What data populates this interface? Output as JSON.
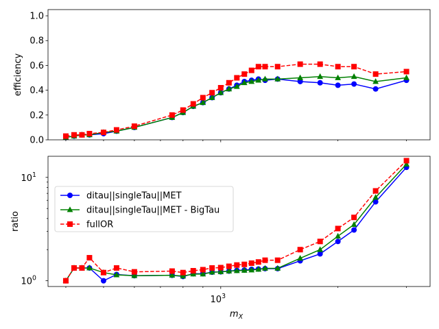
{
  "chart_data": [
    {
      "type": "line",
      "panel": "top",
      "xscale": "log",
      "xlim": [
        360,
        3450
      ],
      "ylim": [
        0,
        1.05
      ],
      "ylabel": "efficiency",
      "yticks": [
        0.0,
        0.2,
        0.4,
        0.6,
        0.8,
        1.0
      ],
      "ytick_labels": [
        "0.0",
        "0.2",
        "0.4",
        "0.6",
        "0.8",
        "1.0"
      ],
      "grid": false,
      "x": [
        400,
        420,
        440,
        460,
        500,
        540,
        600,
        750,
        800,
        850,
        900,
        950,
        1000,
        1050,
        1100,
        1150,
        1200,
        1250,
        1300,
        1400,
        1600,
        1800,
        2000,
        2200,
        2500,
        3000
      ],
      "series": [
        {
          "name": "ditau||singleTau||MET",
          "color": "#0000ff",
          "linestyle": "solid",
          "marker": "circle",
          "values": [
            0.02,
            0.03,
            0.04,
            0.04,
            0.05,
            0.07,
            0.1,
            0.18,
            0.22,
            0.27,
            0.3,
            0.34,
            0.38,
            0.41,
            0.44,
            0.47,
            0.48,
            0.49,
            0.48,
            0.49,
            0.47,
            0.46,
            0.44,
            0.45,
            0.41,
            0.48
          ]
        },
        {
          "name": "ditau||singleTau||MET - BigTau",
          "color": "#008000",
          "linestyle": "solid",
          "marker": "triangle",
          "values": [
            0.02,
            0.03,
            0.04,
            0.04,
            0.06,
            0.07,
            0.1,
            0.18,
            0.22,
            0.27,
            0.3,
            0.34,
            0.38,
            0.41,
            0.43,
            0.46,
            0.47,
            0.48,
            0.49,
            0.49,
            0.5,
            0.51,
            0.5,
            0.51,
            0.47,
            0.5
          ]
        },
        {
          "name": "fullOR",
          "color": "#ff0000",
          "linestyle": "dashed",
          "marker": "square",
          "values": [
            0.03,
            0.04,
            0.04,
            0.05,
            0.06,
            0.08,
            0.11,
            0.2,
            0.24,
            0.29,
            0.34,
            0.38,
            0.42,
            0.46,
            0.5,
            0.53,
            0.56,
            0.59,
            0.59,
            0.59,
            0.61,
            0.61,
            0.59,
            0.59,
            0.53,
            0.55
          ]
        }
      ]
    },
    {
      "type": "line",
      "panel": "bottom",
      "xscale": "log",
      "yscale": "log",
      "xlim": [
        360,
        3450
      ],
      "ylim": [
        0.88,
        16
      ],
      "xlabel": "m_X",
      "ylabel": "ratio",
      "xtick_label": "10^3",
      "ytick_labels": [
        "10^0",
        "10^1"
      ],
      "legend_position": "center-left",
      "grid": false,
      "x": [
        400,
        420,
        440,
        460,
        500,
        540,
        600,
        750,
        800,
        850,
        900,
        950,
        1000,
        1050,
        1100,
        1150,
        1200,
        1250,
        1300,
        1400,
        1600,
        1800,
        2000,
        2200,
        2500,
        3000
      ],
      "series": [
        {
          "name": "ditau||singleTau||MET",
          "color": "#0000ff",
          "linestyle": "solid",
          "marker": "circle",
          "values": [
            1.0,
            1.33,
            1.33,
            1.33,
            1.0,
            1.15,
            1.12,
            1.13,
            1.1,
            1.17,
            1.17,
            1.21,
            1.22,
            1.24,
            1.26,
            1.27,
            1.29,
            1.3,
            1.31,
            1.31,
            1.56,
            1.82,
            2.4,
            3.1,
            5.8,
            12.5
          ]
        },
        {
          "name": "ditau||singleTau||MET - BigTau",
          "color": "#008000",
          "linestyle": "solid",
          "marker": "triangle",
          "values": [
            1.0,
            1.33,
            1.33,
            1.33,
            1.2,
            1.14,
            1.12,
            1.13,
            1.11,
            1.16,
            1.16,
            1.21,
            1.22,
            1.24,
            1.25,
            1.26,
            1.27,
            1.29,
            1.32,
            1.32,
            1.65,
            2.0,
            2.7,
            3.5,
            6.4,
            13.4
          ]
        },
        {
          "name": "fullOR",
          "color": "#ff0000",
          "linestyle": "dashed",
          "marker": "square",
          "values": [
            1.0,
            1.33,
            1.33,
            1.67,
            1.2,
            1.33,
            1.22,
            1.24,
            1.2,
            1.25,
            1.28,
            1.33,
            1.34,
            1.38,
            1.42,
            1.44,
            1.48,
            1.52,
            1.58,
            1.58,
            2.0,
            2.4,
            3.2,
            4.1,
            7.4,
            14.5
          ]
        }
      ]
    }
  ]
}
